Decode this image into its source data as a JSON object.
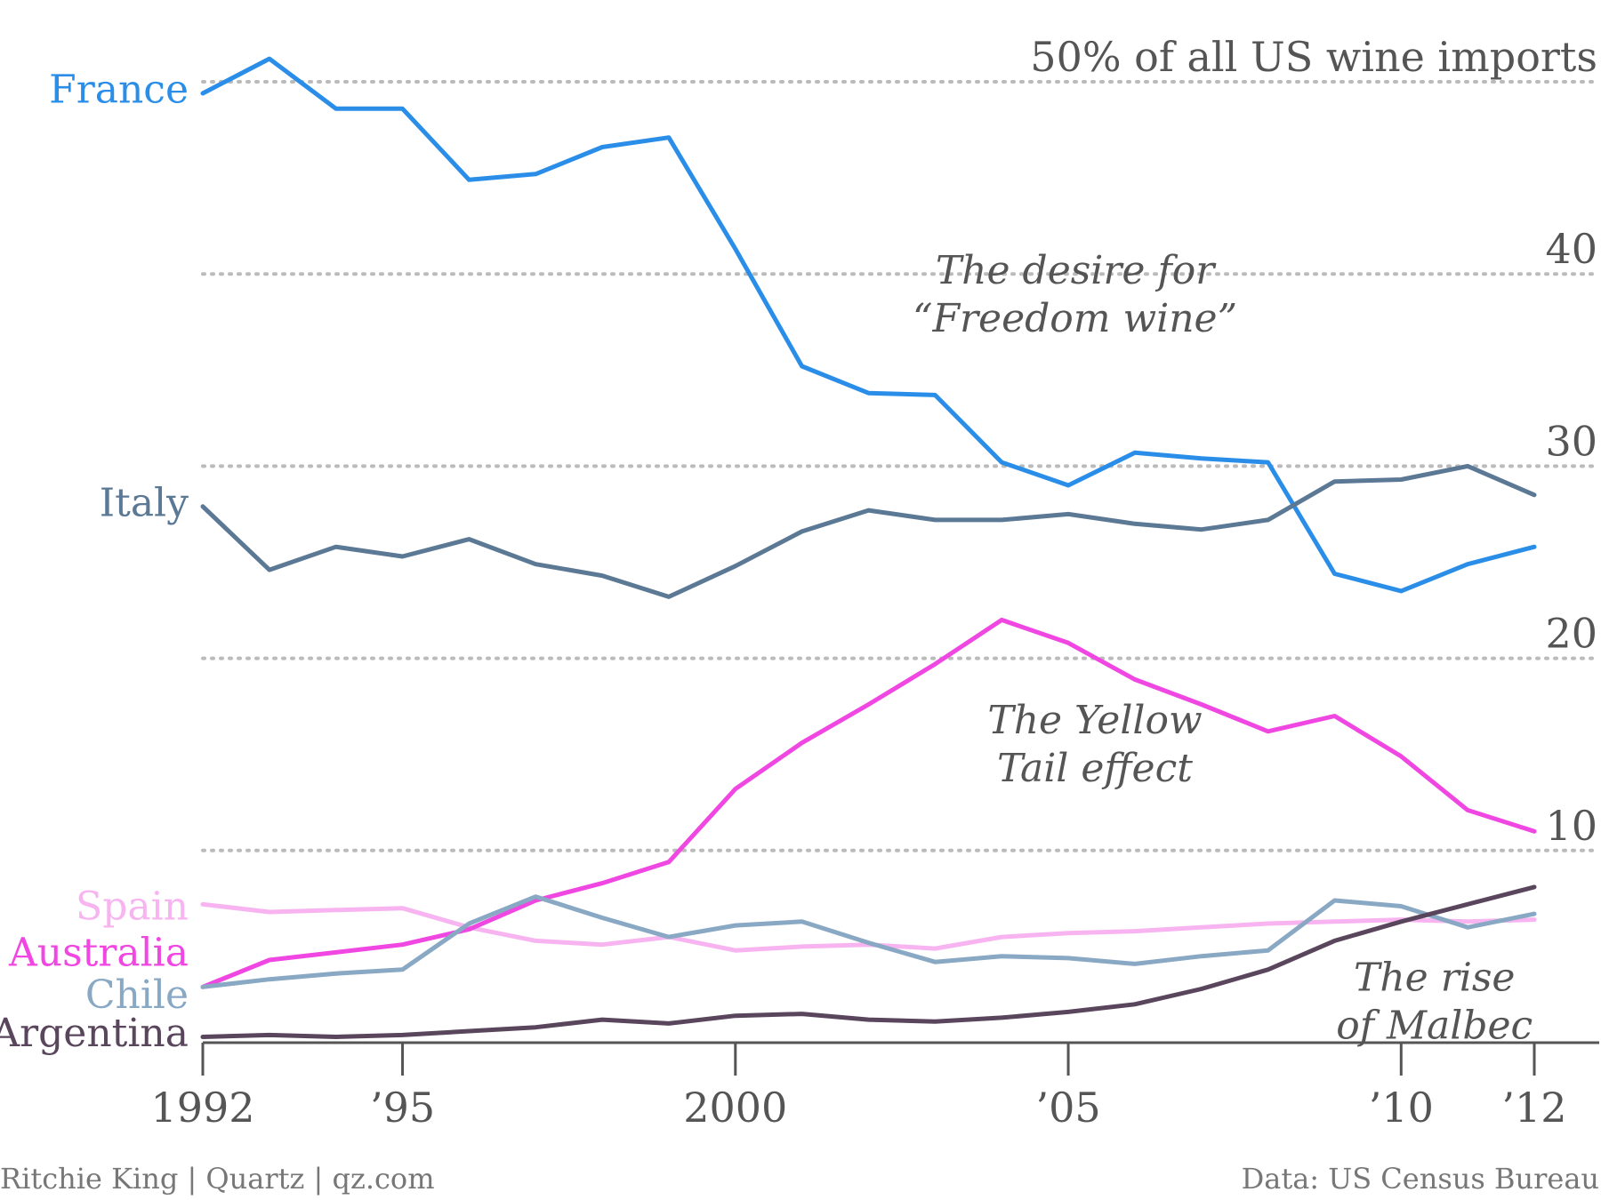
{
  "chart_data": {
    "type": "line",
    "title": "",
    "xlabel": "",
    "ylabel": "",
    "xlim": [
      1992,
      2012
    ],
    "ylim": [
      0,
      50
    ],
    "x": [
      1992,
      1993,
      1994,
      1995,
      1996,
      1997,
      1998,
      1999,
      2000,
      2001,
      2002,
      2003,
      2004,
      2005,
      2006,
      2007,
      2008,
      2009,
      2010,
      2011,
      2012
    ],
    "x_ticks": [
      {
        "value": 1992,
        "label": "1992"
      },
      {
        "value": 1995,
        "label": "’95"
      },
      {
        "value": 2000,
        "label": "2000"
      },
      {
        "value": 2005,
        "label": "’05"
      },
      {
        "value": 2010,
        "label": "’10"
      },
      {
        "value": 2012,
        "label": "’12"
      }
    ],
    "y_ticks": [
      {
        "value": 50,
        "label": "50% of all US wine imports"
      },
      {
        "value": 40,
        "label": "40"
      },
      {
        "value": 30,
        "label": "30"
      },
      {
        "value": 20,
        "label": "20"
      },
      {
        "value": 10,
        "label": "10"
      }
    ],
    "grid": true,
    "legend": "none",
    "series": [
      {
        "name": "France",
        "color": "#2a8ee8",
        "label_y": 49.6,
        "values": [
          49.4,
          51.2,
          48.6,
          48.6,
          44.9,
          45.2,
          46.6,
          47.1,
          41.3,
          35.2,
          33.8,
          33.7,
          30.2,
          29.0,
          30.7,
          30.4,
          30.2,
          24.4,
          23.5,
          24.9,
          25.8
        ]
      },
      {
        "name": "Italy",
        "color": "#5b7894",
        "label_y": 28.1,
        "values": [
          27.9,
          24.6,
          25.8,
          25.3,
          26.2,
          24.9,
          24.3,
          23.2,
          24.8,
          26.6,
          27.7,
          27.2,
          27.2,
          27.5,
          27.0,
          26.7,
          27.2,
          29.2,
          29.3,
          30.0,
          28.5
        ]
      },
      {
        "name": "Spain",
        "color": "#f7b4f0",
        "label_y": 7.1,
        "values": [
          7.2,
          6.8,
          6.9,
          7.0,
          6.0,
          5.3,
          5.1,
          5.5,
          4.8,
          5.0,
          5.1,
          4.9,
          5.5,
          5.7,
          5.8,
          6.0,
          6.2,
          6.3,
          6.4,
          6.3,
          6.4
        ]
      },
      {
        "name": "Australia",
        "color": "#f046e2",
        "label_y": 4.7,
        "values": [
          2.9,
          4.3,
          4.7,
          5.1,
          5.9,
          7.4,
          8.3,
          9.4,
          13.2,
          15.6,
          17.6,
          19.7,
          22.0,
          20.8,
          18.9,
          17.6,
          16.2,
          17.0,
          14.9,
          12.1,
          11.0
        ]
      },
      {
        "name": "Chile",
        "color": "#89a8c4",
        "label_y": 2.5,
        "values": [
          2.9,
          3.3,
          3.6,
          3.8,
          6.2,
          7.6,
          6.5,
          5.5,
          6.1,
          6.3,
          5.2,
          4.2,
          4.5,
          4.4,
          4.1,
          4.5,
          4.8,
          7.4,
          7.1,
          6.0,
          6.7
        ]
      },
      {
        "name": "Argentina",
        "color": "#5a465c",
        "label_y": 0.5,
        "values": [
          0.3,
          0.4,
          0.3,
          0.4,
          0.6,
          0.8,
          1.2,
          1.0,
          1.4,
          1.5,
          1.2,
          1.1,
          1.3,
          1.6,
          2.0,
          2.8,
          3.8,
          5.3,
          6.3,
          7.2,
          8.1
        ]
      }
    ],
    "annotations": [
      {
        "lines": [
          "The desire for",
          "“Freedom wine”"
        ],
        "x": 2005.1,
        "y": 39.5
      },
      {
        "lines": [
          "The Yellow",
          "Tail effect"
        ],
        "x": 2005.4,
        "y": 16.1
      },
      {
        "lines": [
          "The rise",
          "of Malbec"
        ],
        "x": 2010.5,
        "y": 2.7
      }
    ]
  },
  "footer": {
    "credit": "Ritchie King | Quartz | qz.com",
    "source": "Data: US Census Bureau"
  }
}
